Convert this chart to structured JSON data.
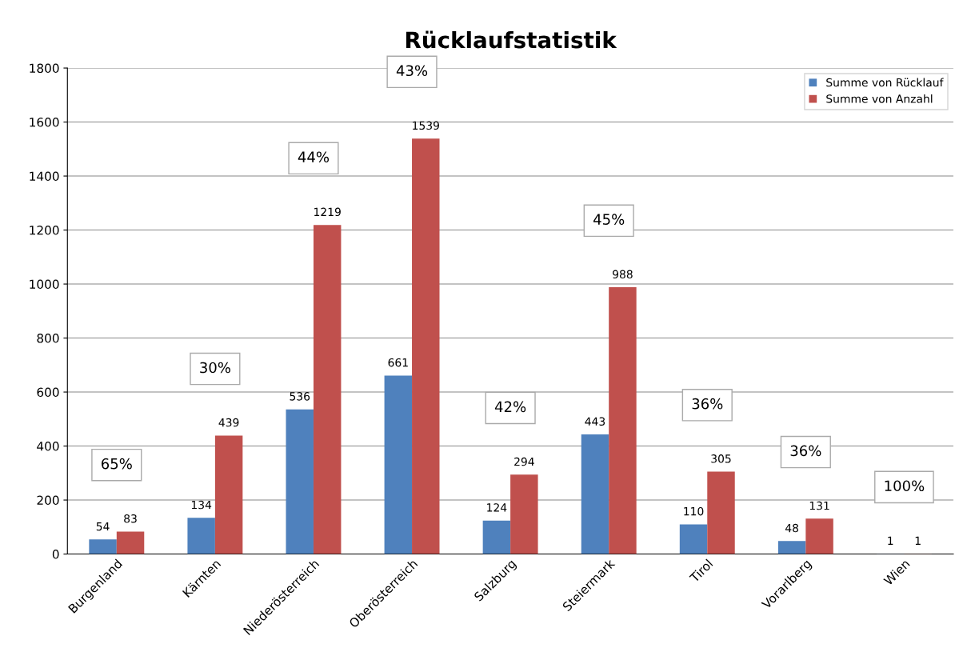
{
  "chart_data": {
    "type": "bar",
    "title": "Rücklaufstatistik",
    "categories": [
      "Burgenland",
      "Kärnten",
      "Niederösterreich",
      "Oberösterreich",
      "Salzburg",
      "Steiermark",
      "Tirol",
      "Vorarlberg",
      "Wien"
    ],
    "series": [
      {
        "name": "Summe von Rücklauf",
        "color": "#4f81bd",
        "values": [
          54,
          134,
          536,
          661,
          124,
          443,
          110,
          48,
          1
        ]
      },
      {
        "name": "Summe von Anzahl",
        "color": "#c0504d",
        "values": [
          83,
          439,
          1219,
          1539,
          294,
          988,
          305,
          131,
          1
        ]
      }
    ],
    "ylim": [
      0,
      1800
    ],
    "yticks": [
      0,
      200,
      400,
      600,
      800,
      1000,
      1200,
      1400,
      1600,
      1800
    ],
    "grid": "y",
    "legend": "top right",
    "data_labels": true,
    "annotations": [
      "65%",
      "30%",
      "44%",
      "43%",
      "42%",
      "45%",
      "36%",
      "36%",
      "100%"
    ]
  }
}
